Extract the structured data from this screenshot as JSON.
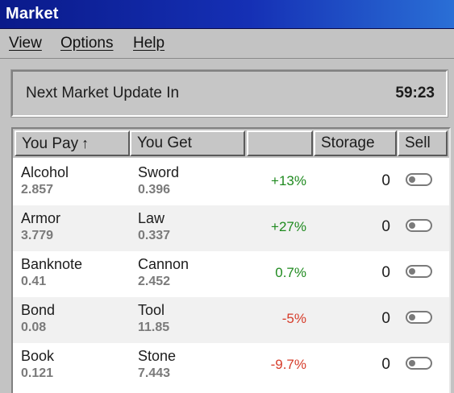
{
  "window": {
    "title": "Market"
  },
  "menu": {
    "items": [
      "View",
      "Options",
      "Help"
    ]
  },
  "update": {
    "label": "Next Market Update In",
    "timer": "59:23"
  },
  "table": {
    "headers": {
      "pay": "You Pay",
      "pay_sort_icon": "up-arrow-icon",
      "get": "You Get",
      "change": "",
      "storage": "Storage",
      "sell": "Sell"
    },
    "rows": [
      {
        "pay": "Alcohol",
        "pay_value": "2.857",
        "get": "Sword",
        "get_value": "0.396",
        "change": "+13%",
        "change_color": "#1f8a1f",
        "storage": "0"
      },
      {
        "pay": "Armor",
        "pay_value": "3.779",
        "get": "Law",
        "get_value": "0.337",
        "change": "+27%",
        "change_color": "#1f8a1f",
        "storage": "0"
      },
      {
        "pay": "Banknote",
        "pay_value": "0.41",
        "get": "Cannon",
        "get_value": "2.452",
        "change": "0.7%",
        "change_color": "#1f8a1f",
        "storage": "0"
      },
      {
        "pay": "Bond",
        "pay_value": "0.08",
        "get": "Tool",
        "get_value": "11.85",
        "change": "-5%",
        "change_color": "#d63c2a",
        "storage": "0"
      },
      {
        "pay": "Book",
        "pay_value": "0.121",
        "get": "Stone",
        "get_value": "7.443",
        "change": "-9.7%",
        "change_color": "#d63c2a",
        "storage": "0"
      }
    ]
  },
  "colors": {
    "titlebar_start": "#0a1a8a",
    "titlebar_end": "#2a6fd6",
    "positive": "#1f8a1f",
    "negative": "#d63c2a"
  }
}
